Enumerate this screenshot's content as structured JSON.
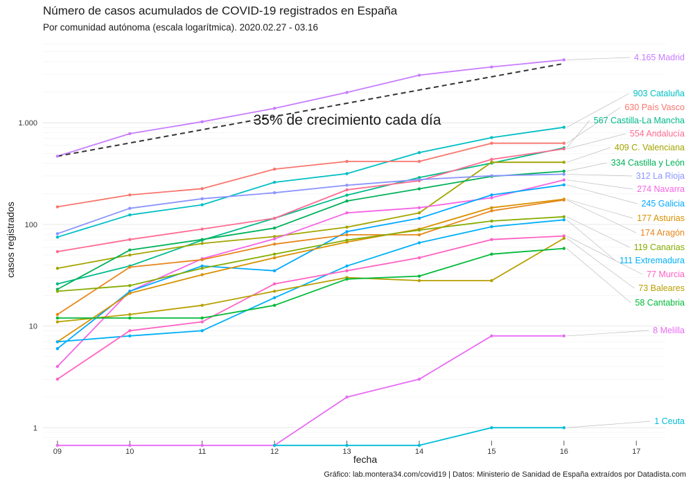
{
  "chart_data": {
    "type": "line",
    "title": "Número de casos acumulados de COVID-19 registrados en España",
    "subtitle": "Por comunidad autónoma (escala logarítmica). 2020.02.27 - 03.16",
    "xlabel": "fecha",
    "ylabel": "casos registrados",
    "caption": "Gráfico: lab.montera34.com/covid19 | Datos: Ministerio de Sanidad de España extraídos por Datadista.com",
    "annotation": "35% de crecimiento cada día",
    "y_scale": "log",
    "ylim": [
      0.7,
      6500
    ],
    "xlim": [
      8.8,
      17.4
    ],
    "x_ticks": [
      9,
      10,
      11,
      12,
      13,
      14,
      15,
      16,
      17
    ],
    "x_tick_labels": [
      "09",
      "10",
      "11",
      "12",
      "13",
      "14",
      "15",
      "16",
      "17"
    ],
    "y_ticks": [
      1,
      10,
      100,
      1000
    ],
    "y_tick_labels": [
      "1",
      "10",
      "100",
      "1.000"
    ],
    "grid": true,
    "x": [
      9,
      10,
      11,
      12,
      13,
      14,
      15,
      16
    ],
    "reference_line": {
      "label": "35% de crecimiento cada día",
      "x": [
        9,
        16
      ],
      "y": [
        469,
        3829
      ],
      "color": "#333333"
    },
    "series": [
      {
        "name": "Madrid",
        "label": "4.165 Madrid",
        "color": "#C77CFF",
        "values": [
          469,
          782,
          1024,
          1388,
          1990,
          2940,
          3544,
          4165
        ]
      },
      {
        "name": "Cataluña",
        "label": "903 Cataluña",
        "color": "#00BFC4",
        "values": [
          75,
          124,
          156,
          260,
          316,
          509,
          715,
          903
        ]
      },
      {
        "name": "País Vasco",
        "label": "630 País Vasco",
        "color": "#F8766D",
        "values": [
          149,
          195,
          225,
          350,
          417,
          417,
          630,
          630
        ]
      },
      {
        "name": "Castilla-La Mancha",
        "label": "567 Castilla-La Mancha",
        "color": "#00BA8B",
        "values": [
          26,
          39,
          70,
          115,
          194,
          289,
          401,
          567
        ]
      },
      {
        "name": "Andalucía",
        "label": "554 Andalucía",
        "color": "#FF6C91",
        "values": [
          54,
          71,
          90,
          115,
          219,
          269,
          437,
          554
        ]
      },
      {
        "name": "C. Valenciana",
        "label": "409 C. Valenciana",
        "color": "#A3A500",
        "values": [
          37,
          50,
          65,
          76,
          94,
          130,
          409,
          409
        ]
      },
      {
        "name": "Castilla y León",
        "label": "334 Castilla y León",
        "color": "#00B159",
        "values": [
          23,
          56,
          71,
          92,
          170,
          224,
          297,
          334
        ]
      },
      {
        "name": "La Rioja",
        "label": "312 La Rioja",
        "color": "#8C94FF",
        "values": [
          81,
          144,
          179,
          205,
          243,
          276,
          301,
          312
        ]
      },
      {
        "name": "Navarra",
        "label": "274 Navarra",
        "color": "#F564E3",
        "values": [
          4,
          22,
          46,
          72,
          130,
          146,
          183,
          274
        ]
      },
      {
        "name": "Galicia",
        "label": "245 Galicia",
        "color": "#00A9FF",
        "values": [
          6,
          22,
          39,
          35,
          85,
          115,
          195,
          245
        ]
      },
      {
        "name": "Asturias",
        "label": "177 Asturias",
        "color": "#D89000",
        "values": [
          7,
          21,
          32,
          47,
          67,
          90,
          146,
          177
        ]
      },
      {
        "name": "Aragón",
        "label": "174 Aragón",
        "color": "#E7861B",
        "values": [
          13,
          38,
          45,
          64,
          79,
          79,
          136,
          174
        ]
      },
      {
        "name": "Canarias",
        "label": "119 Canarias",
        "color": "#85AD00",
        "values": [
          22,
          25,
          37,
          51,
          70,
          88,
          108,
          119
        ]
      },
      {
        "name": "Extremadura",
        "label": "111 Extremadura",
        "color": "#00B0F6",
        "values": [
          7,
          8,
          9,
          19,
          39,
          66,
          95,
          111
        ]
      },
      {
        "name": "Murcia",
        "label": "77 Murcia",
        "color": "#FF61C3",
        "values": [
          3,
          9,
          11,
          26,
          35,
          47,
          71,
          77
        ]
      },
      {
        "name": "Baleares",
        "label": "73 Baleares",
        "color": "#B79F00",
        "values": [
          11,
          13,
          16,
          22,
          30,
          28,
          28,
          73
        ]
      },
      {
        "name": "Cantabria",
        "label": "58 Cantabria",
        "color": "#00BA38",
        "values": [
          12,
          12,
          12,
          16,
          29,
          31,
          51,
          58
        ]
      },
      {
        "name": "Melilla",
        "label": "8 Melilla",
        "color": "#E76BF3",
        "values": [
          0.67,
          0.67,
          0.67,
          0.67,
          2,
          3,
          8,
          8
        ]
      },
      {
        "name": "Ceuta",
        "label": "1 Ceuta",
        "color": "#00BCD8",
        "values": [
          null,
          null,
          null,
          0.67,
          0.67,
          0.67,
          1,
          1
        ]
      }
    ]
  }
}
